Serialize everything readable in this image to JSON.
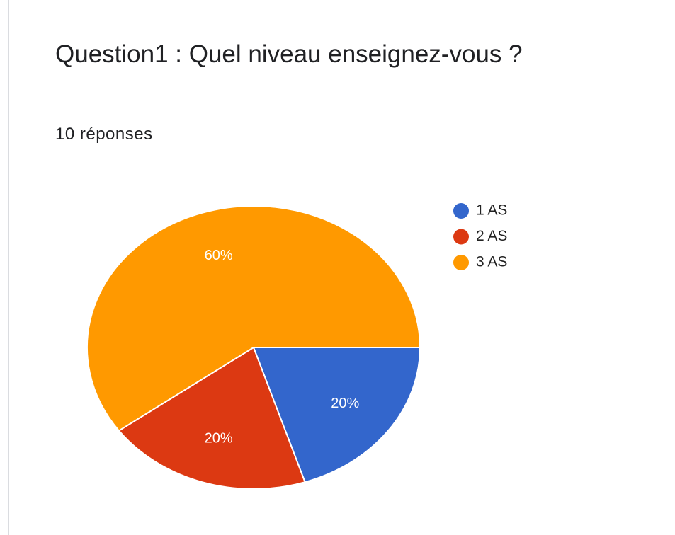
{
  "chart_data": {
    "type": "pie",
    "title": "Question1 : Quel niveau enseignez-vous ?",
    "subtitle": "10 réponses",
    "categories": [
      "1 AS",
      "2 AS",
      "3 AS"
    ],
    "values": [
      20,
      20,
      60
    ],
    "value_labels": [
      "20%",
      "20%",
      "60%"
    ],
    "colors": [
      "#3366cc",
      "#dc3912",
      "#ff9900"
    ],
    "legend": "right"
  }
}
